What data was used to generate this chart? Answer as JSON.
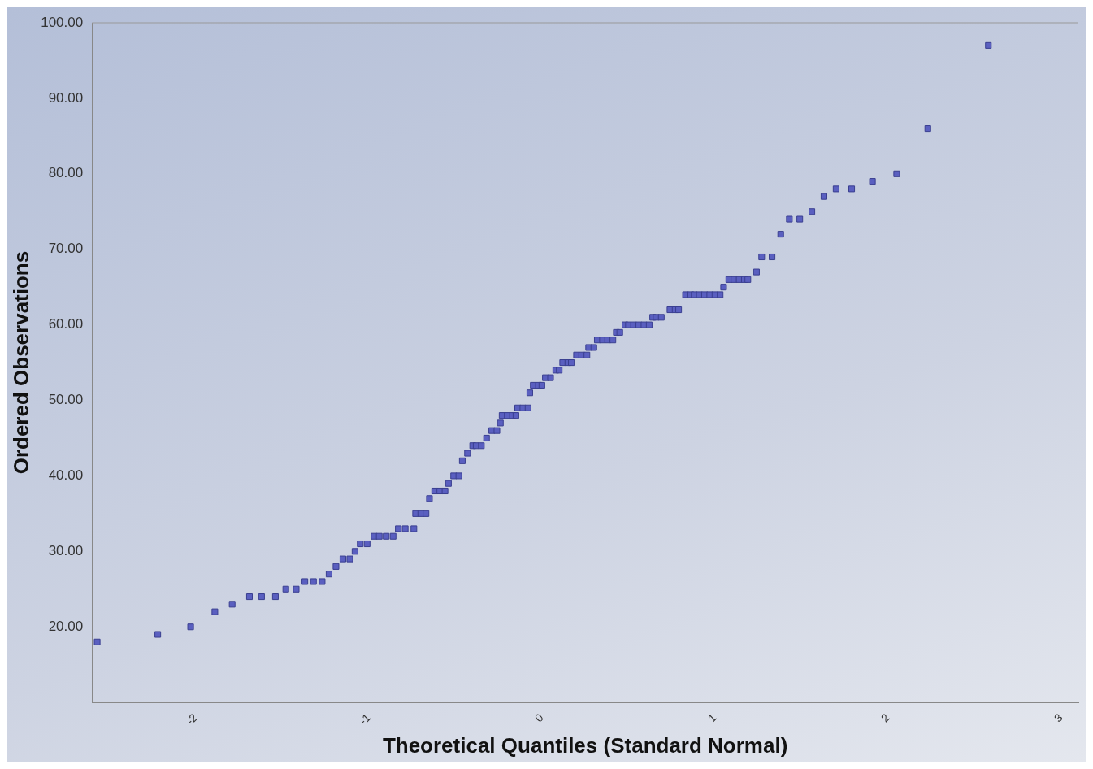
{
  "chart_data": {
    "type": "scatter",
    "xlabel": "Theoretical Quantiles (Standard Normal)",
    "ylabel": "Ordered Observations",
    "marker": "square",
    "grid": false,
    "legend": false,
    "xlim": [
      -2.6,
      3.1
    ],
    "xticks": [
      -2,
      -1,
      0,
      1,
      2,
      3
    ],
    "ylim": [
      10,
      100
    ],
    "yticks": [
      {
        "value": 20,
        "label": "20.00"
      },
      {
        "value": 30,
        "label": "30.00"
      },
      {
        "value": 40,
        "label": "40.00"
      },
      {
        "value": 50,
        "label": "50.00"
      },
      {
        "value": 60,
        "label": "60.00"
      },
      {
        "value": 70,
        "label": "70.00"
      },
      {
        "value": 80,
        "label": "80.00"
      },
      {
        "value": 90,
        "label": "90.00"
      },
      {
        "value": 100,
        "label": "100.00"
      }
    ],
    "series": [
      {
        "color": "#5a5fc0",
        "x": [
          -2.57,
          -2.22,
          -2.03,
          -1.89,
          -1.79,
          -1.69,
          -1.62,
          -1.54,
          -1.48,
          -1.42,
          -1.37,
          -1.32,
          -1.27,
          -1.23,
          -1.19,
          -1.15,
          -1.11,
          -1.08,
          -1.05,
          -1.01,
          -0.97,
          -0.94,
          -0.9,
          -0.86,
          -0.83,
          -0.79,
          -0.74,
          -0.73,
          -0.7,
          -0.67,
          -0.65,
          -0.62,
          -0.59,
          -0.56,
          -0.54,
          -0.51,
          -0.48,
          -0.46,
          -0.43,
          -0.4,
          -0.38,
          -0.35,
          -0.32,
          -0.29,
          -0.26,
          -0.24,
          -0.23,
          -0.2,
          -0.17,
          -0.15,
          -0.14,
          -0.11,
          -0.08,
          -0.07,
          -0.05,
          -0.02,
          0.0,
          0.02,
          0.05,
          0.08,
          0.1,
          0.12,
          0.15,
          0.17,
          0.2,
          0.23,
          0.26,
          0.27,
          0.3,
          0.32,
          0.35,
          0.38,
          0.41,
          0.43,
          0.45,
          0.48,
          0.5,
          0.53,
          0.56,
          0.59,
          0.62,
          0.64,
          0.66,
          0.69,
          0.74,
          0.77,
          0.79,
          0.83,
          0.86,
          0.88,
          0.91,
          0.94,
          0.97,
          1.0,
          1.03,
          1.05,
          1.08,
          1.11,
          1.14,
          1.17,
          1.19,
          1.24,
          1.27,
          1.33,
          1.38,
          1.43,
          1.49,
          1.56,
          1.63,
          1.7,
          1.79,
          1.91,
          2.05,
          2.23,
          2.58
        ],
        "values": [
          18,
          19,
          20,
          22,
          23,
          24,
          24,
          24,
          25,
          25,
          26,
          26,
          26,
          27,
          28,
          29,
          29,
          30,
          31,
          31,
          32,
          32,
          32,
          32,
          33,
          33,
          33,
          35,
          35,
          35,
          37,
          38,
          38,
          38,
          39,
          40,
          40,
          42,
          43,
          44,
          44,
          44,
          45,
          46,
          46,
          47,
          48,
          48,
          48,
          48,
          49,
          49,
          49,
          51,
          52,
          52,
          52,
          53,
          53,
          54,
          54,
          55,
          55,
          55,
          56,
          56,
          56,
          57,
          57,
          58,
          58,
          58,
          58,
          59,
          59,
          60,
          60,
          60,
          60,
          60,
          60,
          61,
          61,
          61,
          62,
          62,
          62,
          64,
          64,
          64,
          64,
          64,
          64,
          64,
          64,
          65,
          66,
          66,
          66,
          66,
          66,
          67,
          69,
          69,
          72,
          74,
          74,
          75,
          77,
          78,
          78,
          79,
          80,
          86,
          97
        ]
      }
    ]
  }
}
